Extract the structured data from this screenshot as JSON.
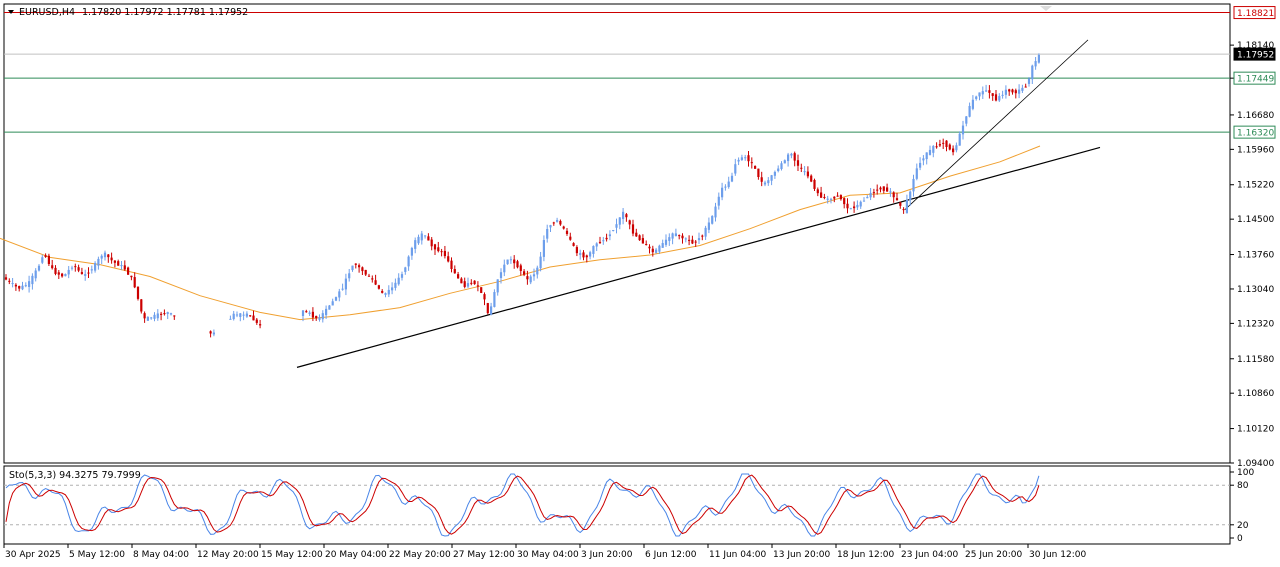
{
  "header": {
    "symbol": "EURUSD,H4",
    "ohlc": "1.17820 1.17972 1.17781 1.17952"
  },
  "oscillator": {
    "label": "Sto(5,3,3) 94.3275 79.7999",
    "levels": [
      "100",
      "80",
      "20",
      "0"
    ]
  },
  "price_tags": [
    {
      "text": "1.18821",
      "value": 1.18821,
      "kind": "resistance"
    },
    {
      "text": "1.17952",
      "value": 1.17952,
      "kind": "current"
    },
    {
      "text": "1.17449",
      "value": 1.17449,
      "kind": "support"
    },
    {
      "text": "1.16320",
      "value": 1.1632,
      "kind": "support"
    }
  ],
  "chart_data": {
    "type": "candlestick",
    "instrument": "EURUSD",
    "timeframe": "H4",
    "ylim": [
      1.094,
      1.19
    ],
    "y_ticks": [
      "1.18140",
      "1.17449",
      "1.16680",
      "1.15960",
      "1.15220",
      "1.14500",
      "1.13760",
      "1.13040",
      "1.12320",
      "1.11580",
      "1.10860",
      "1.10120",
      "1.09400"
    ],
    "x_ticks": [
      "30 Apr 2025",
      "5 May 12:00",
      "8 May 04:00",
      "12 May 20:00",
      "15 May 12:00",
      "20 May 04:00",
      "22 May 20:00",
      "27 May 12:00",
      "30 May 04:00",
      "3 Jun 20:00",
      "6 Jun 12:00",
      "11 Jun 04:00",
      "13 Jun 20:00",
      "18 Jun 12:00",
      "23 Jun 04:00",
      "25 Jun 20:00",
      "30 Jun 12:00"
    ],
    "price_path": [
      [
        0,
        1.1335
      ],
      [
        10,
        1.132
      ],
      [
        20,
        1.1305
      ],
      [
        30,
        1.1315
      ],
      [
        40,
        1.135
      ],
      [
        45,
        1.138
      ],
      [
        55,
        1.134
      ],
      [
        65,
        1.133
      ],
      [
        75,
        1.1355
      ],
      [
        85,
        1.133
      ],
      [
        95,
        1.135
      ],
      [
        105,
        1.138
      ],
      [
        115,
        1.136
      ],
      [
        125,
        1.135
      ],
      [
        135,
        1.132
      ],
      [
        145,
        1.124
      ],
      [
        160,
        1.125
      ],
      [
        170,
        1.1255
      ],
      [
        185,
        1.123
      ],
      [
        200,
        1.122
      ],
      [
        215,
        1.121
      ],
      [
        235,
        1.125
      ],
      [
        250,
        1.125
      ],
      [
        260,
        1.123
      ],
      [
        275,
        1.1195
      ],
      [
        290,
        1.121
      ],
      [
        305,
        1.126
      ],
      [
        320,
        1.124
      ],
      [
        335,
        1.128
      ],
      [
        345,
        1.131
      ],
      [
        355,
        1.136
      ],
      [
        365,
        1.134
      ],
      [
        375,
        1.132
      ],
      [
        385,
        1.129
      ],
      [
        395,
        1.131
      ],
      [
        405,
        1.134
      ],
      [
        415,
        1.14
      ],
      [
        425,
        1.142
      ],
      [
        435,
        1.139
      ],
      [
        445,
        1.138
      ],
      [
        455,
        1.134
      ],
      [
        465,
        1.131
      ],
      [
        475,
        1.132
      ],
      [
        485,
        1.129
      ],
      [
        490,
        1.1245
      ],
      [
        500,
        1.133
      ],
      [
        510,
        1.137
      ],
      [
        520,
        1.135
      ],
      [
        530,
        1.132
      ],
      [
        540,
        1.135
      ],
      [
        548,
        1.143
      ],
      [
        558,
        1.145
      ],
      [
        568,
        1.142
      ],
      [
        578,
        1.138
      ],
      [
        588,
        1.137
      ],
      [
        598,
        1.14
      ],
      [
        608,
        1.141
      ],
      [
        618,
        1.144
      ],
      [
        625,
        1.1465
      ],
      [
        635,
        1.142
      ],
      [
        645,
        1.14
      ],
      [
        655,
        1.138
      ],
      [
        665,
        1.14
      ],
      [
        675,
        1.142
      ],
      [
        685,
        1.141
      ],
      [
        695,
        1.14
      ],
      [
        705,
        1.142
      ],
      [
        715,
        1.146
      ],
      [
        722,
        1.151
      ],
      [
        732,
        1.153
      ],
      [
        738,
        1.1575
      ],
      [
        748,
        1.158
      ],
      [
        755,
        1.156
      ],
      [
        765,
        1.152
      ],
      [
        775,
        1.1545
      ],
      [
        785,
        1.157
      ],
      [
        792,
        1.159
      ],
      [
        800,
        1.156
      ],
      [
        810,
        1.154
      ],
      [
        820,
        1.15
      ],
      [
        830,
        1.149
      ],
      [
        840,
        1.15
      ],
      [
        850,
        1.147
      ],
      [
        860,
        1.148
      ],
      [
        870,
        1.15
      ],
      [
        880,
        1.1515
      ],
      [
        890,
        1.151
      ],
      [
        898,
        1.149
      ],
      [
        905,
        1.1465
      ],
      [
        912,
        1.151
      ],
      [
        918,
        1.1555
      ],
      [
        925,
        1.158
      ],
      [
        935,
        1.16
      ],
      [
        945,
        1.161
      ],
      [
        955,
        1.159
      ],
      [
        962,
        1.163
      ],
      [
        970,
        1.168
      ],
      [
        978,
        1.171
      ],
      [
        988,
        1.172
      ],
      [
        998,
        1.17
      ],
      [
        1008,
        1.172
      ],
      [
        1018,
        1.1715
      ],
      [
        1028,
        1.173
      ],
      [
        1035,
        1.1775
      ],
      [
        1042,
        1.1795
      ]
    ],
    "moving_average": [
      [
        0,
        1.141
      ],
      [
        50,
        1.137
      ],
      [
        100,
        1.1355
      ],
      [
        150,
        1.133
      ],
      [
        200,
        1.129
      ],
      [
        260,
        1.1255
      ],
      [
        300,
        1.124
      ],
      [
        350,
        1.125
      ],
      [
        400,
        1.1265
      ],
      [
        450,
        1.1295
      ],
      [
        500,
        1.132
      ],
      [
        550,
        1.135
      ],
      [
        600,
        1.1365
      ],
      [
        650,
        1.1375
      ],
      [
        700,
        1.1395
      ],
      [
        750,
        1.143
      ],
      [
        800,
        1.147
      ],
      [
        850,
        1.15
      ],
      [
        900,
        1.1505
      ],
      [
        950,
        1.154
      ],
      [
        1000,
        1.157
      ],
      [
        1040,
        1.1603
      ]
    ],
    "trendlines": [
      {
        "from": [
          297,
          1.114
        ],
        "to": [
          1100,
          1.16
        ]
      },
      {
        "from": [
          905,
          1.147
        ],
        "to": [
          1088,
          1.1825
        ]
      }
    ],
    "horizontal_levels": [
      {
        "value": 1.18821,
        "color": "#cc0000"
      },
      {
        "value": 1.17952,
        "color": "#c0c0c0"
      },
      {
        "value": 1.17449,
        "color": "#2e8b57"
      },
      {
        "value": 1.1632,
        "color": "#2e8b57"
      }
    ],
    "stochastic": {
      "k_last": 94.3275,
      "d_last": 79.7999,
      "levels": [
        100,
        80,
        20,
        0
      ],
      "colors": {
        "k": "#4a86e8",
        "d": "#cc0000"
      }
    },
    "colors": {
      "bull": "#6d9eeb",
      "bear": "#cc0000",
      "ma": "#f0a030",
      "trendline": "#000000"
    }
  }
}
